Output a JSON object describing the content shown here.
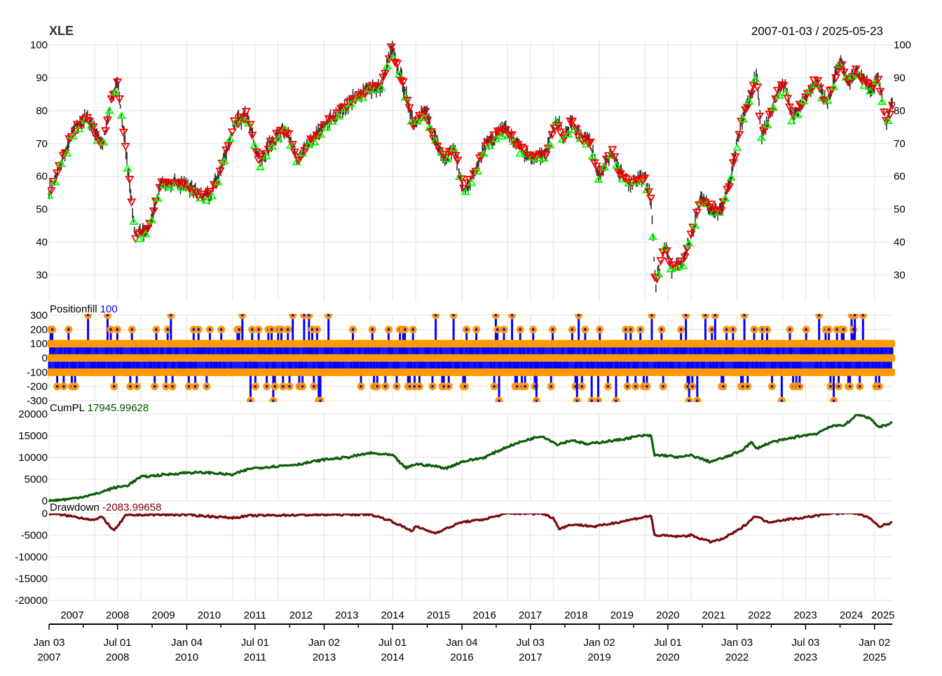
{
  "chart_data": {
    "type": "line",
    "title": "XLE",
    "date_range": "2007-01-03 / 2025-05-23",
    "x_range": [
      "2007-01-03",
      "2025-05-23"
    ],
    "year_labels": [
      "2007",
      "2008",
      "2009",
      "2010",
      "2011",
      "2012",
      "2013",
      "2014",
      "2015",
      "2016",
      "2017",
      "2018",
      "2019",
      "2020",
      "2021",
      "2022",
      "2023",
      "2024",
      "2025"
    ],
    "date_ticks": [
      {
        "date": "2007-01-03",
        "line1": "Jan 03",
        "line2": "2007"
      },
      {
        "date": "2008-07-01",
        "line1": "Jul 01",
        "line2": "2008"
      },
      {
        "date": "2010-01-04",
        "line1": "Jan 04",
        "line2": "2010"
      },
      {
        "date": "2011-07-01",
        "line1": "Jul 01",
        "line2": "2011"
      },
      {
        "date": "2013-01-02",
        "line1": "Jan 02",
        "line2": "2013"
      },
      {
        "date": "2014-07-01",
        "line1": "Jul 01",
        "line2": "2014"
      },
      {
        "date": "2016-01-04",
        "line1": "Jan 04",
        "line2": "2016"
      },
      {
        "date": "2017-07-03",
        "line1": "Jul 03",
        "line2": "2017"
      },
      {
        "date": "2019-01-02",
        "line1": "Jan 02",
        "line2": "2019"
      },
      {
        "date": "2020-07-01",
        "line1": "Jul 01",
        "line2": "2020"
      },
      {
        "date": "2022-01-03",
        "line1": "Jan 03",
        "line2": "2022"
      },
      {
        "date": "2023-07-03",
        "line1": "Jul 03",
        "line2": "2023"
      },
      {
        "date": "2025-01-02",
        "line1": "Jan 02",
        "line2": "2025"
      }
    ],
    "panels": [
      {
        "name": "price",
        "label": "",
        "last_value": "",
        "y_ticks": [
          "30",
          "40",
          "50",
          "60",
          "70",
          "80",
          "90",
          "100"
        ],
        "y_tick_values": [
          30,
          40,
          50,
          60,
          70,
          80,
          90,
          100
        ],
        "ylim": [
          22,
          100
        ],
        "color": "#333333",
        "series": {
          "name": "XLE",
          "x": [
            "2007-01-03",
            "2007-04-01",
            "2007-07-15",
            "2007-10-31",
            "2008-03-01",
            "2008-05-20",
            "2008-07-01",
            "2008-10-15",
            "2008-11-20",
            "2009-03-09",
            "2009-06-10",
            "2009-10-15",
            "2010-01-10",
            "2010-04-26",
            "2010-07-01",
            "2010-09-15",
            "2011-01-15",
            "2011-04-29",
            "2011-08-10",
            "2011-10-31",
            "2012-02-24",
            "2012-06-04",
            "2012-09-14",
            "2012-11-15",
            "2013-03-15",
            "2013-08-01",
            "2013-12-31",
            "2014-04-01",
            "2014-06-23",
            "2014-09-15",
            "2014-12-15",
            "2015-03-15",
            "2015-05-15",
            "2015-08-24",
            "2015-11-03",
            "2016-01-20",
            "2016-04-15",
            "2016-07-01",
            "2016-12-13",
            "2017-03-15",
            "2017-06-15",
            "2017-10-31",
            "2018-01-26",
            "2018-04-01",
            "2018-05-22",
            "2018-08-01",
            "2018-10-15",
            "2018-12-24",
            "2019-04-23",
            "2019-06-01",
            "2019-08-15",
            "2019-12-31",
            "2020-02-20",
            "2020-03-23",
            "2020-06-08",
            "2020-07-30",
            "2020-10-30",
            "2021-01-15",
            "2021-03-15",
            "2021-05-31",
            "2021-08-20",
            "2021-10-31",
            "2022-01-31",
            "2022-06-08",
            "2022-07-14",
            "2022-11-15",
            "2023-01-15",
            "2023-03-17",
            "2023-06-01",
            "2023-09-27",
            "2023-12-15",
            "2024-04-05",
            "2024-06-01",
            "2024-08-15",
            "2024-10-15",
            "2024-12-30",
            "2025-01-20",
            "2025-04-08",
            "2025-05-23"
          ],
          "values": [
            55,
            63,
            74,
            78,
            70,
            84,
            89,
            55,
            42,
            44,
            58,
            58,
            57,
            54,
            54,
            60,
            76,
            79,
            64,
            70,
            75,
            65,
            71,
            73,
            78,
            83,
            87,
            87,
            99,
            89,
            76,
            80,
            73,
            65,
            69,
            55,
            61,
            69,
            75,
            70,
            66,
            67,
            77,
            71,
            77,
            72,
            71,
            60,
            68,
            62,
            58,
            60,
            52,
            27,
            39,
            32,
            34,
            44,
            53,
            51,
            49,
            57,
            75,
            91,
            72,
            85,
            89,
            78,
            82,
            90,
            82,
            95,
            89,
            92,
            88,
            87,
            91,
            76,
            82
          ]
        }
      },
      {
        "name": "positionfill",
        "label": "Positionfill",
        "last_value": "100",
        "value_color": "#0000ff",
        "y_ticks": [
          "300",
          "200",
          "100",
          "0",
          "-100",
          "-200",
          "-300"
        ],
        "y_tick_values": [
          300,
          200,
          100,
          0,
          -100,
          -200,
          -300
        ],
        "ylim": [
          -300,
          300
        ],
        "bar_color": "#0000ff",
        "point_color": "#ff9900"
      },
      {
        "name": "cumpl",
        "label": "CumPL",
        "last_value": "17945.99628",
        "value_color": "#005000",
        "y_ticks": [
          "20000",
          "15000",
          "10000",
          "5000",
          "0"
        ],
        "y_tick_values": [
          20000,
          15000,
          10000,
          5000,
          0
        ],
        "ylim": [
          0,
          20000
        ],
        "color": "#0d5c0d",
        "series": {
          "name": "CumPL",
          "x": [
            "2007-01-03",
            "2007-07-01",
            "2008-01-01",
            "2008-06-01",
            "2008-09-15",
            "2009-01-01",
            "2009-07-01",
            "2010-01-01",
            "2010-07-01",
            "2011-01-01",
            "2011-06-01",
            "2012-01-01",
            "2012-07-01",
            "2013-01-01",
            "2013-07-01",
            "2014-01-01",
            "2014-07-01",
            "2014-10-15",
            "2015-01-01",
            "2015-06-01",
            "2015-09-01",
            "2016-01-01",
            "2016-07-01",
            "2017-01-01",
            "2017-06-01",
            "2017-10-01",
            "2018-02-01",
            "2018-06-01",
            "2018-10-01",
            "2019-01-01",
            "2019-06-01",
            "2019-12-01",
            "2020-02-20",
            "2020-03-15",
            "2020-06-01",
            "2020-10-01",
            "2021-01-01",
            "2021-06-01",
            "2021-10-01",
            "2022-02-01",
            "2022-05-01",
            "2022-06-01",
            "2022-10-01",
            "2023-01-01",
            "2023-06-01",
            "2023-10-01",
            "2024-01-01",
            "2024-05-01",
            "2024-07-01",
            "2024-08-15",
            "2024-12-01",
            "2025-02-01",
            "2025-04-08",
            "2025-05-23"
          ],
          "values": [
            0,
            500,
            1500,
            3000,
            3500,
            5500,
            6000,
            6500,
            6500,
            6000,
            7500,
            8000,
            8500,
            9500,
            10000,
            11000,
            10500,
            7500,
            8500,
            8000,
            7500,
            9000,
            10000,
            12500,
            14000,
            15000,
            13000,
            14000,
            13000,
            13500,
            14000,
            15000,
            15000,
            10500,
            10500,
            10000,
            10500,
            9000,
            10000,
            11500,
            13500,
            12000,
            13500,
            14000,
            15000,
            15500,
            17000,
            17500,
            18500,
            20000,
            19000,
            17000,
            17500,
            17945.99628
          ]
        }
      },
      {
        "name": "drawdown",
        "label": "Drawdown",
        "last_value": "-2083.99658",
        "value_color": "#7a0000",
        "y_ticks": [
          "0",
          "-5000",
          "-10000",
          "-15000",
          "-20000"
        ],
        "y_tick_values": [
          0,
          -5000,
          -10000,
          -15000,
          -20000
        ],
        "ylim": [
          -20000,
          0
        ],
        "color": "#7b0a0a",
        "series": {
          "name": "Drawdown",
          "x": [
            "2007-01-03",
            "2007-06-01",
            "2008-01-01",
            "2008-03-01",
            "2008-06-01",
            "2008-07-01",
            "2008-09-01",
            "2009-01-01",
            "2010-01-01",
            "2011-01-01",
            "2011-06-01",
            "2012-01-01",
            "2013-01-01",
            "2014-01-01",
            "2014-06-01",
            "2014-12-01",
            "2015-01-01",
            "2015-06-01",
            "2015-09-01",
            "2016-01-01",
            "2016-06-01",
            "2017-01-01",
            "2017-10-01",
            "2018-01-01",
            "2018-02-15",
            "2018-06-01",
            "2018-12-01",
            "2019-06-01",
            "2020-02-20",
            "2020-03-15",
            "2020-10-01",
            "2021-01-01",
            "2021-06-01",
            "2021-09-01",
            "2022-02-01",
            "2022-06-01",
            "2022-09-01",
            "2023-01-01",
            "2023-06-01",
            "2023-10-01",
            "2024-01-01",
            "2024-06-01",
            "2024-08-15",
            "2024-12-01",
            "2025-02-01",
            "2025-04-08",
            "2025-05-23"
          ],
          "values": [
            0,
            -500,
            -1500,
            -800,
            -4000,
            -3000,
            -500,
            -300,
            -300,
            -1000,
            -500,
            -400,
            -300,
            -200,
            -1500,
            -4000,
            -3000,
            -4500,
            -3500,
            -2000,
            -1500,
            0,
            0,
            -1000,
            -3500,
            -2500,
            -3000,
            -2000,
            -500,
            -5000,
            -5300,
            -5000,
            -6500,
            -6000,
            -3500,
            -500,
            -2000,
            -1500,
            -1000,
            -500,
            0,
            0,
            0,
            -1000,
            -3000,
            -2500,
            -2083.99658
          ]
        }
      }
    ]
  }
}
